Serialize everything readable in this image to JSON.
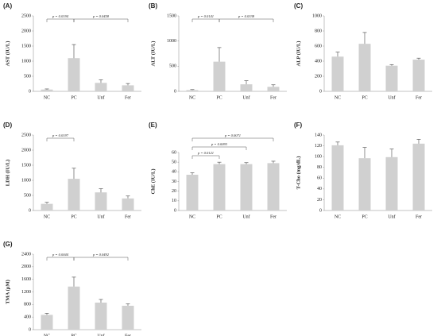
{
  "chart_data": [
    {
      "type": "bar",
      "title": "(A)",
      "y_label": "AST (IU/L)",
      "categories": [
        "NC",
        "PC",
        "Unf",
        "Fer"
      ],
      "values": [
        60,
        1100,
        280,
        200
      ],
      "errors": [
        20,
        450,
        100,
        60
      ],
      "color": "#d0d0d0",
      "ylim": [
        0,
        2500
      ],
      "yticks": [
        0,
        500,
        1000,
        1500,
        2000,
        2500
      ],
      "comparisons": [
        {
          "between": [
            "NC",
            "PC"
          ],
          "label": "p = 0.0194"
        },
        {
          "between": [
            "PC",
            "Fer"
          ],
          "label": "p = 0.0458"
        }
      ]
    },
    {
      "type": "bar",
      "title": "(B)",
      "y_label": "ALT (IU/L)",
      "categories": [
        "NC",
        "PC",
        "Unf",
        "Fer"
      ],
      "values": [
        25,
        590,
        140,
        90
      ],
      "errors": [
        10,
        280,
        70,
        40
      ],
      "color": "#d0d0d0",
      "ylim": [
        0,
        1500
      ],
      "yticks": [
        0,
        500,
        1000,
        1500
      ],
      "comparisons": [
        {
          "between": [
            "NC",
            "PC"
          ],
          "label": "p = 0.0141"
        },
        {
          "between": [
            "PC",
            "Fer"
          ],
          "label": "p = 0.0338"
        }
      ]
    },
    {
      "type": "bar",
      "title": "(C)",
      "y_label": "ALP (IU/L)",
      "categories": [
        "NC",
        "PC",
        "Unf",
        "Fer"
      ],
      "values": [
        460,
        630,
        340,
        420
      ],
      "errors": [
        60,
        150,
        15,
        20
      ],
      "color": "#d0d0d0",
      "ylim": [
        0,
        1000
      ],
      "yticks": [
        0,
        200,
        400,
        600,
        800,
        1000
      ],
      "comparisons": []
    },
    {
      "type": "bar",
      "title": "(D)",
      "y_label": "LDH (IU/L)",
      "categories": [
        "NC",
        "PC",
        "Unf",
        "Fer"
      ],
      "values": [
        220,
        1050,
        600,
        400
      ],
      "errors": [
        50,
        350,
        120,
        80
      ],
      "color": "#d0d0d0",
      "ylim": [
        0,
        2500
      ],
      "yticks": [
        0,
        500,
        1000,
        1500,
        2000,
        2500
      ],
      "comparisons": [
        {
          "between": [
            "NC",
            "PC"
          ],
          "label": "p = 0.0197"
        }
      ]
    },
    {
      "type": "bar",
      "title": "(E)",
      "y_label": "ChE (IU/L)",
      "categories": [
        "NC",
        "PC",
        "Unf",
        "Fer"
      ],
      "values": [
        37,
        48,
        48,
        49
      ],
      "errors": [
        2,
        2,
        1.5,
        2
      ],
      "color": "#d0d0d0",
      "ylim": [
        0,
        60
      ],
      "yticks": [
        0,
        10,
        20,
        30,
        40,
        50,
        60
      ],
      "comparisons": [
        {
          "between": [
            "NC",
            "PC"
          ],
          "label": "p = 0.0121"
        },
        {
          "between": [
            "NC",
            "Unf"
          ],
          "label": "p = 0.0093"
        },
        {
          "between": [
            "NC",
            "Fer"
          ],
          "label": "p = 0.0071"
        }
      ]
    },
    {
      "type": "bar",
      "title": "(F)",
      "y_label": "T-Cho (mg/dL)",
      "categories": [
        "NC",
        "PC",
        "Unf",
        "Fer"
      ],
      "values": [
        121,
        97,
        99,
        124
      ],
      "errors": [
        6,
        20,
        15,
        8
      ],
      "color": "#d0d0d0",
      "ylim": [
        0,
        140
      ],
      "yticks": [
        0,
        20,
        40,
        60,
        80,
        100,
        120,
        140
      ],
      "comparisons": []
    },
    {
      "type": "bar",
      "title": "(G)",
      "y_label": "TMA (μM)",
      "categories": [
        "NC",
        "PC",
        "Unf",
        "Fer"
      ],
      "values": [
        470,
        1370,
        860,
        760
      ],
      "errors": [
        50,
        300,
        100,
        60
      ],
      "color": "#d0d0d0",
      "ylim": [
        0,
        2400
      ],
      "yticks": [
        0,
        400,
        800,
        1200,
        1600,
        2000,
        2400
      ],
      "comparisons": [
        {
          "between": [
            "NC",
            "PC"
          ],
          "label": "p = 0.0044"
        },
        {
          "between": [
            "PC",
            "Fer"
          ],
          "label": "p = 0.0492"
        }
      ]
    }
  ]
}
